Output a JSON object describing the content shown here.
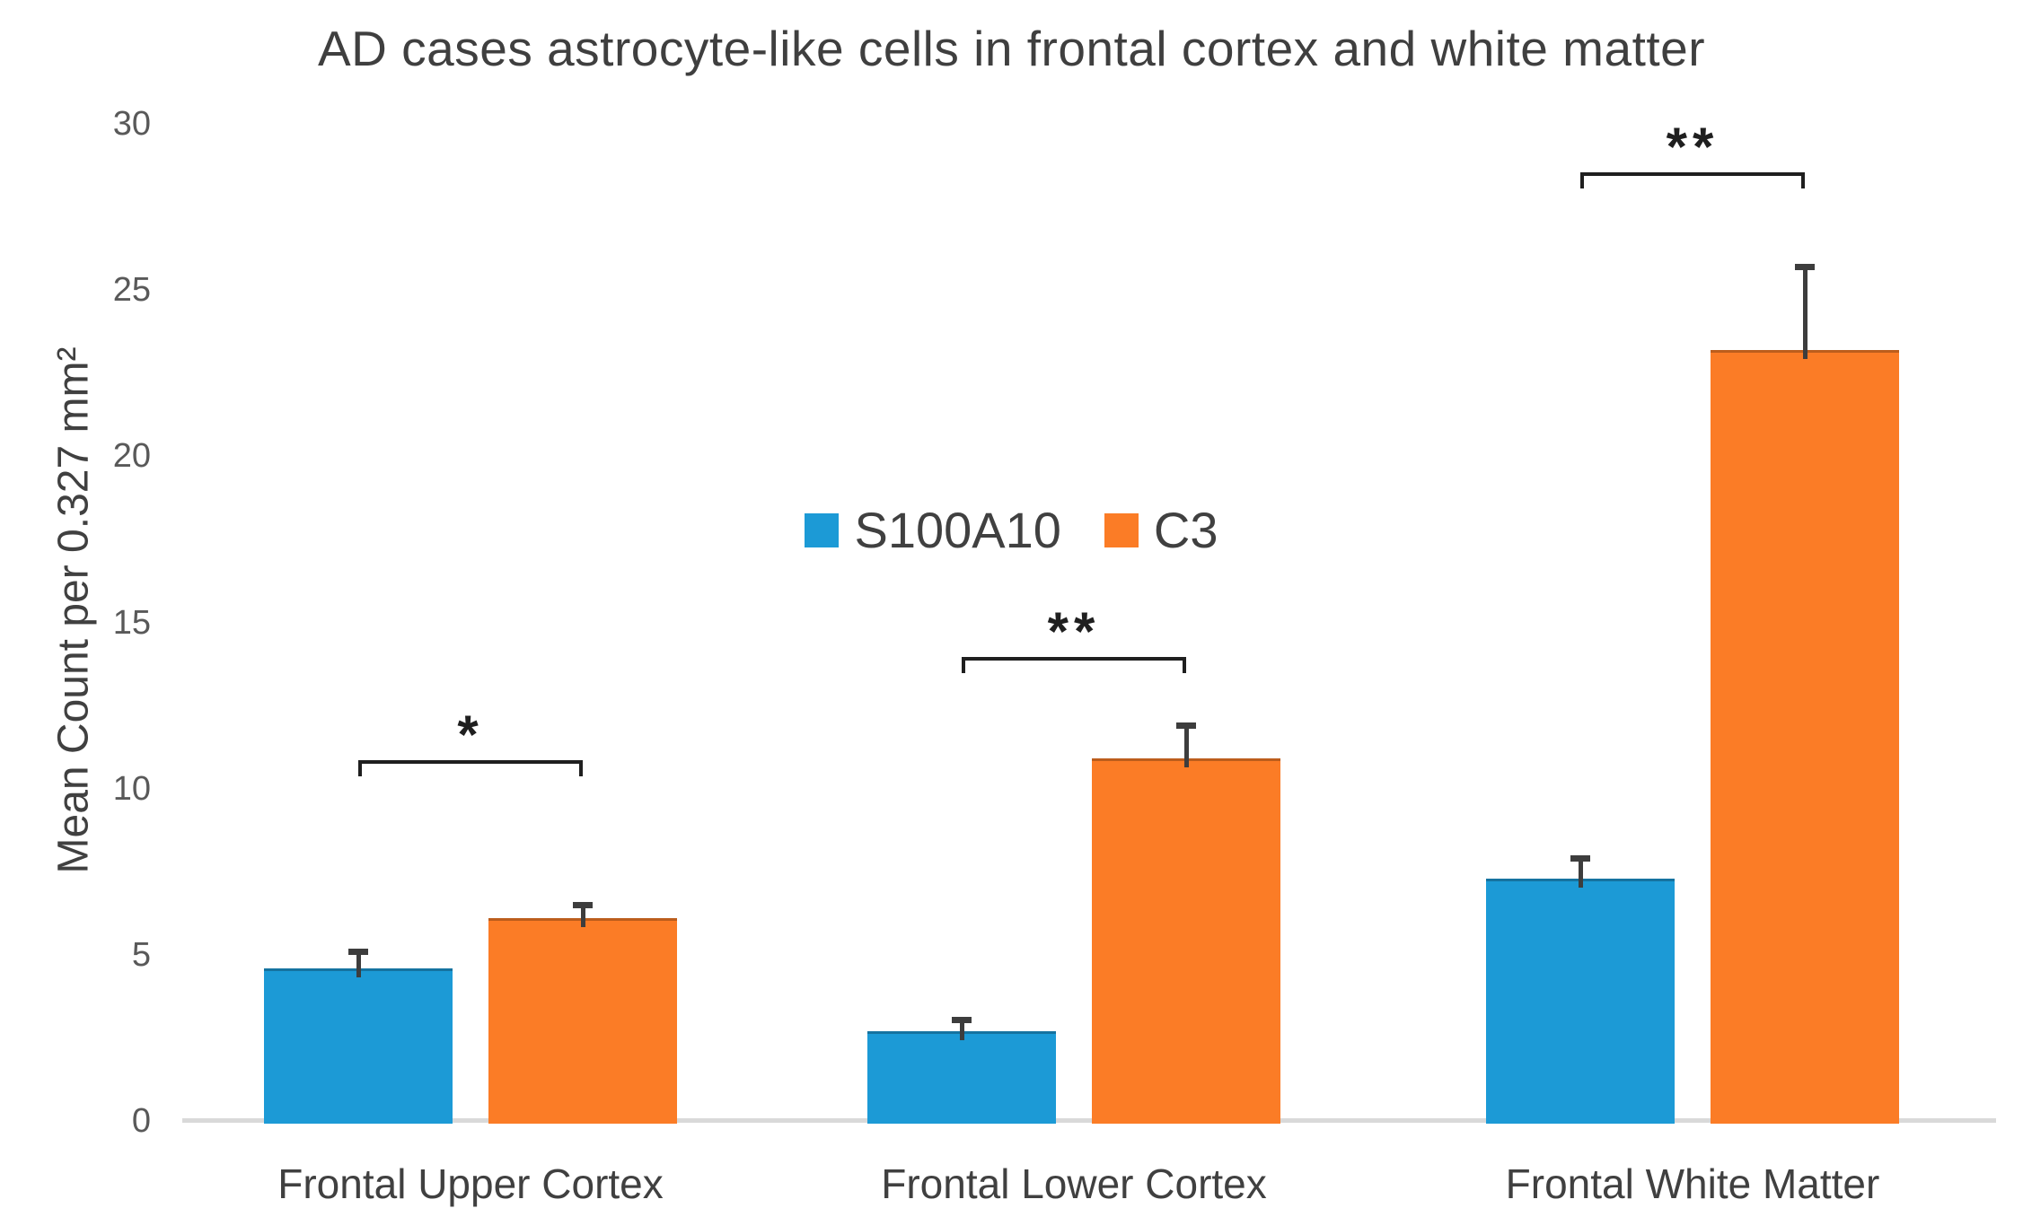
{
  "chart_data": {
    "type": "bar",
    "title": "AD cases astrocyte-like cells in frontal cortex and white matter",
    "ylabel": "Mean Count per 0.327 mm²",
    "xlabel": "",
    "categories": [
      "Frontal Upper Cortex",
      "Frontal Lower Cortex",
      "Frontal White Matter"
    ],
    "series": [
      {
        "name": "S100A10",
        "color": "#1C9AD6",
        "values": [
          4.6,
          2.7,
          7.3
        ],
        "errors": [
          0.5,
          0.35,
          0.6
        ]
      },
      {
        "name": "C3",
        "color": "#FB7C26",
        "values": [
          6.1,
          10.9,
          23.2
        ],
        "errors": [
          0.4,
          1.0,
          2.5
        ]
      }
    ],
    "ylim": [
      0,
      30
    ],
    "yticks": [
      0,
      5,
      10,
      15,
      20,
      25,
      30
    ],
    "grid": false,
    "legend_position": "center",
    "annotations": [
      {
        "category_index": 0,
        "label": "*",
        "y_value": 10.85
      },
      {
        "category_index": 1,
        "label": "**",
        "y_value": 13.95
      },
      {
        "category_index": 2,
        "label": "**",
        "y_value": 28.55
      }
    ],
    "colors": {
      "title_text": "#3f3f3f",
      "axis_text": "#404040",
      "tick_text": "#595959",
      "axis_line": "#d9d9d9",
      "error_bar": "#3d3d3d",
      "annotation": "#1f1f1f",
      "background": "#ffffff"
    }
  }
}
